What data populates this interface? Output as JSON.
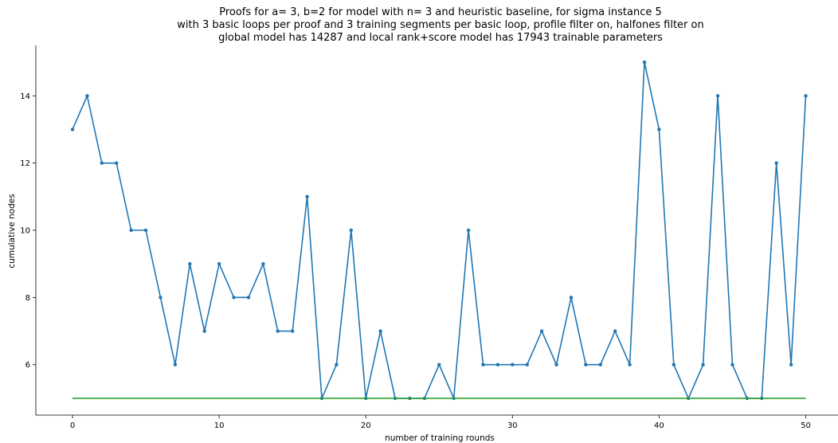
{
  "chart_data": {
    "type": "line",
    "title_lines": [
      "Proofs for a= 3, b=2 for model with n= 3 and heuristic baseline, for sigma instance 5",
      "with 3 basic loops per proof and 3 training segments per basic loop, profile filter on, halfones filter on",
      "global model has 14287 and local rank+score model has 17943 trainable parameters"
    ],
    "xlabel": "number of training rounds",
    "ylabel": "cumulative nodes",
    "xlim": [
      -2.5,
      52.2
    ],
    "ylim": [
      4.5,
      15.5
    ],
    "xticks": [
      0,
      10,
      20,
      30,
      40,
      50
    ],
    "yticks": [
      6,
      8,
      10,
      12,
      14
    ],
    "grid": false,
    "series": [
      {
        "color": "#1f77b4",
        "marker": true,
        "x": [
          0,
          1,
          2,
          3,
          4,
          5,
          6,
          7,
          8,
          9,
          10,
          11,
          12,
          13,
          14,
          15,
          16,
          17,
          18,
          19,
          20,
          21,
          22,
          23,
          24,
          25,
          26,
          27,
          28,
          29,
          30,
          31,
          32,
          33,
          34,
          35,
          36,
          37,
          38,
          39,
          40,
          41,
          42,
          43,
          44,
          45,
          46,
          47,
          48,
          49,
          50
        ],
        "y": [
          13,
          14,
          12,
          12,
          10,
          10,
          8,
          6,
          9,
          7,
          9,
          8,
          8,
          9,
          7,
          7,
          11,
          5,
          6,
          10,
          5,
          7,
          5,
          5,
          5,
          6,
          5,
          10,
          6,
          6,
          6,
          6,
          7,
          6,
          8,
          6,
          6,
          7,
          6,
          15,
          13,
          6,
          5,
          6,
          14,
          6,
          5,
          5,
          12,
          6,
          14
        ]
      },
      {
        "color": "#2ca02c",
        "marker": false,
        "x": [
          0,
          50
        ],
        "y": [
          5,
          5
        ]
      }
    ]
  }
}
